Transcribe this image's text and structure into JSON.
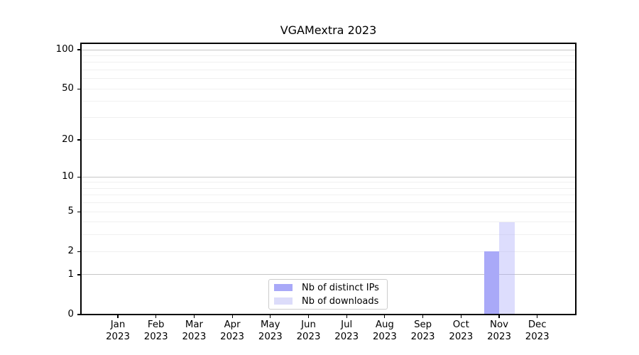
{
  "chart_data": {
    "type": "bar",
    "title": "VGAMextra 2023",
    "year": "2023",
    "months": [
      "Jan",
      "Feb",
      "Mar",
      "Apr",
      "May",
      "Jun",
      "Jul",
      "Aug",
      "Sep",
      "Oct",
      "Nov",
      "Dec"
    ],
    "series": [
      {
        "name": "Nb of distinct IPs",
        "color": "#a9a9f8",
        "fill": "#a9a9f8",
        "values": [
          0,
          0,
          0,
          0,
          0,
          0,
          0,
          0,
          0,
          0,
          2,
          0
        ]
      },
      {
        "name": "Nb of downloads",
        "color": "#dcdcfa",
        "fill": "rgba(169,169,250,0.40)",
        "values": [
          0,
          0,
          0,
          0,
          0,
          0,
          0,
          0,
          0,
          0,
          4,
          0
        ]
      }
    ],
    "y_axis": {
      "scale": "log1p",
      "ylim": [
        0,
        112
      ],
      "labeled_ticks": [
        100,
        50,
        20,
        10,
        5,
        2,
        1,
        0
      ],
      "decade_gridlines": [
        1,
        10,
        100
      ],
      "minor_gridlines": [
        2,
        3,
        4,
        5,
        6,
        7,
        8,
        9,
        20,
        30,
        40,
        50,
        60,
        70,
        80,
        90
      ]
    },
    "legend": {
      "position": "lower center"
    },
    "style_colors": {
      "decade_grid": "#c6c6c6",
      "minor_grid": "#f0f0f0",
      "spine": "#000000"
    }
  }
}
